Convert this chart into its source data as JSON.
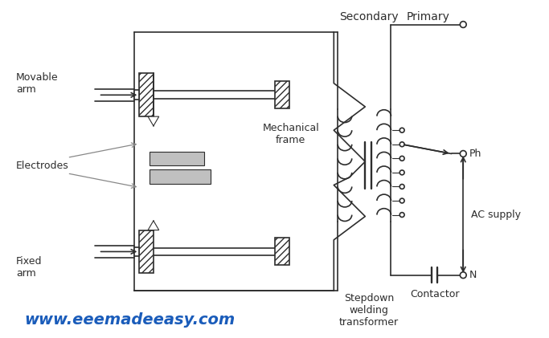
{
  "bg_color": "#ffffff",
  "line_color": "#2d2d2d",
  "hatch_color": "#555555",
  "gray_fill": "#c0c0c0",
  "blue_text": "#1a5cba",
  "title_secondary": "Secondary",
  "title_primary": "Primary",
  "label_movable_arm": "Movable\narm",
  "label_fixed_arm": "Fixed\narm",
  "label_electrodes": "Electrodes",
  "label_mechanical_frame": "Mechanical\nframe",
  "label_stepdown": "Stepdown\nwelding\ntransformer",
  "label_ac": "AC supply",
  "label_ph": "Ph",
  "label_n": "N",
  "label_contactor": "Contactor",
  "label_website": "www.eeemadeeasy.com",
  "figsize": [
    6.83,
    4.21
  ],
  "dpi": 100
}
